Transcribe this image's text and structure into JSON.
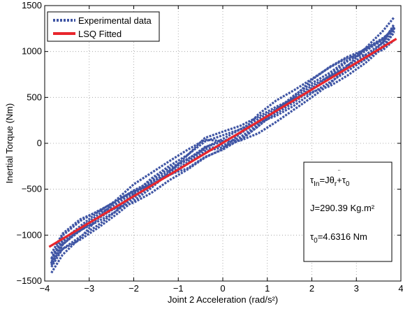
{
  "chart_data": {
    "type": "line",
    "title": "",
    "xlabel": "Joint 2 Acceleration (rad/s²)",
    "ylabel": "Inertial Torque (Nm)",
    "xlim": [
      -4,
      4
    ],
    "ylim": [
      -1500,
      1500
    ],
    "x_ticks": [
      -4,
      -3,
      -2,
      -1,
      0,
      1,
      2,
      3,
      4
    ],
    "x_tick_labels": [
      "−4",
      "−3",
      "−2",
      "−1",
      "0",
      "1",
      "2",
      "3",
      "4"
    ],
    "y_ticks": [
      -1500,
      -1000,
      -500,
      0,
      500,
      1000,
      1500
    ],
    "y_tick_labels": [
      "−1500",
      "−1000",
      "−500",
      "0",
      "500",
      "1000",
      "1500"
    ],
    "grid": true,
    "legend_position": "top-left",
    "colors": {
      "experimental": "#3f55a4",
      "fitted": "#e8262c"
    },
    "series": [
      {
        "name": "Experimental data",
        "style": "dotted",
        "x": [
          -3.85,
          -3.6,
          -3.2,
          -2.8,
          -2.4,
          -2.0,
          -1.6,
          -1.2,
          -0.8,
          -0.4,
          0.0,
          0.4,
          0.8,
          1.2,
          1.6,
          2.0,
          2.4,
          2.8,
          3.2,
          3.6,
          3.85
        ],
        "y": [
          -1300,
          -1100,
          -950,
          -820,
          -700,
          -560,
          -430,
          -300,
          -180,
          -40,
          20,
          110,
          230,
          350,
          470,
          600,
          720,
          850,
          960,
          1100,
          1250
        ]
      },
      {
        "name": "LSQ Fitted",
        "style": "solid",
        "x": [
          -3.9,
          3.9
        ],
        "y": [
          -1128,
          1138
        ]
      }
    ],
    "annotations": {
      "formula": "τ_In = J θ̈_r + τ_0",
      "formula_parts": [
        "τ",
        "In",
        "=J",
        "θ",
        "r",
        "+τ",
        "0"
      ],
      "j_value": "J=290.39 Kg.m²",
      "tau0_parts": [
        "τ",
        "0",
        "=4.6316 Nm"
      ]
    }
  }
}
